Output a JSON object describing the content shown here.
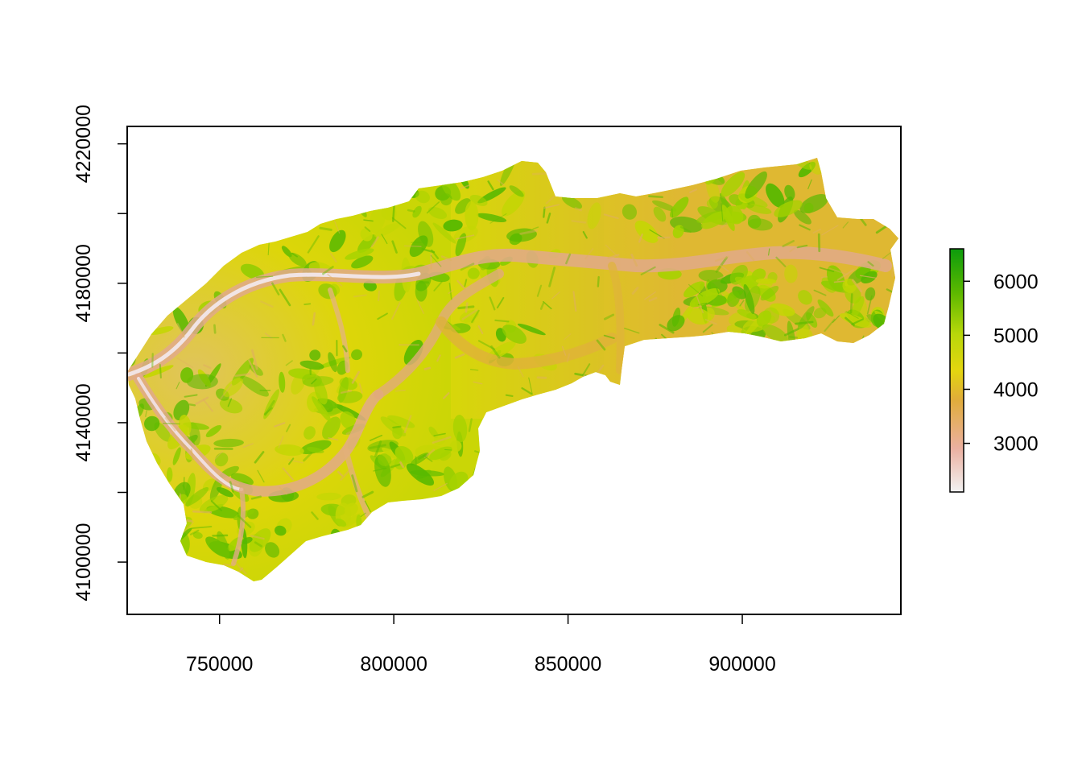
{
  "chart_data": {
    "type": "heatmap",
    "title": "",
    "xlabel": "",
    "ylabel": "",
    "xlim": [
      723500,
      945500
    ],
    "ylim": [
      4085000,
      4225000
    ],
    "x_ticks": [
      {
        "value": 750000,
        "label": "750000"
      },
      {
        "value": 800000,
        "label": "800000"
      },
      {
        "value": 850000,
        "label": "850000"
      },
      {
        "value": 900000,
        "label": "900000"
      }
    ],
    "y_ticks": [
      {
        "value": 4100000,
        "label": "4100000"
      },
      {
        "value": 4120000,
        "label": ""
      },
      {
        "value": 4140000,
        "label": "4140000"
      },
      {
        "value": 4160000,
        "label": ""
      },
      {
        "value": 4180000,
        "label": "4180000"
      },
      {
        "value": 4200000,
        "label": ""
      },
      {
        "value": 4220000,
        "label": "4220000"
      }
    ],
    "legend": {
      "placement": "right",
      "range": [
        2100,
        6600
      ],
      "ticks": [
        {
          "value": 3000,
          "label": "3000"
        },
        {
          "value": 4000,
          "label": "4000"
        },
        {
          "value": 5000,
          "label": "5000"
        },
        {
          "value": 6000,
          "label": "6000"
        }
      ],
      "colors": [
        "#f2f2f2",
        "#ebb0a0",
        "#e0ac3a",
        "#e4d60f",
        "#b8d70a",
        "#5cb800",
        "#0c9c0c"
      ]
    },
    "colors": {
      "valley_low": "#f1e4e4",
      "valley": "#e2a78c",
      "plateau": "#e0b23a",
      "mid": "#dfdf06",
      "slope": "#a8d400",
      "peak": "#3fad00"
    },
    "grid": false
  }
}
